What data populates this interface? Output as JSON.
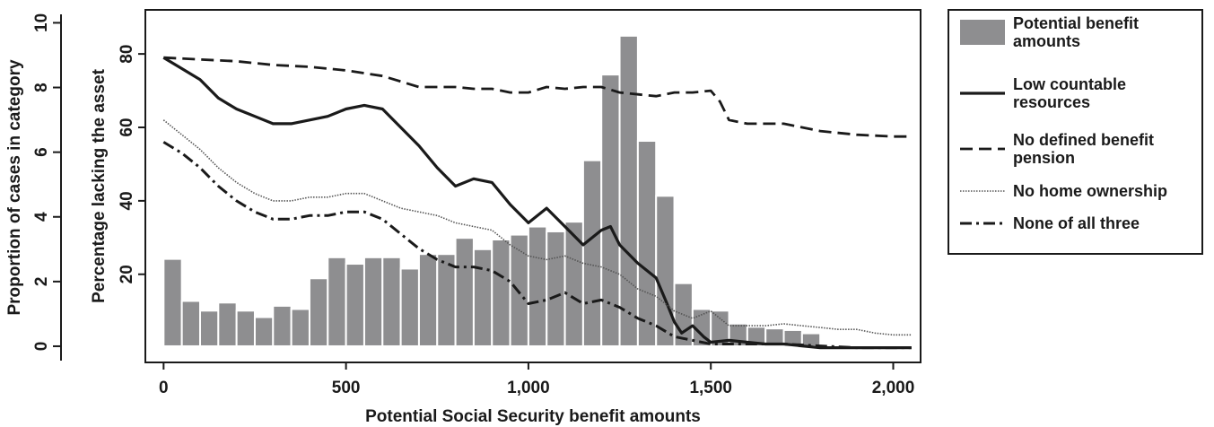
{
  "chart_data": {
    "type": "bar",
    "title": "",
    "xlabel": "Potential Social Security benefit amounts",
    "ylabel_left": "Proportion of cases in category",
    "ylabel_right": "Percentage lacking the asset",
    "xlim": [
      -50,
      2075
    ],
    "x_ticks": [
      0,
      500,
      1000,
      1500,
      2000
    ],
    "x_tick_labels": [
      "0",
      "500",
      "1,000",
      "1,500",
      "2,000"
    ],
    "ylim_left": [
      -0.5,
      10.4
    ],
    "y_ticks_left": [
      0,
      2,
      4,
      6,
      8,
      10
    ],
    "y_tick_labels_left": [
      "0",
      "2",
      "4",
      "6",
      "8",
      "10"
    ],
    "ylim_right": [
      -4,
      92
    ],
    "y_ticks_right": [
      20,
      40,
      60,
      80
    ],
    "y_tick_labels_right": [
      "20",
      "40",
      "60",
      "80"
    ],
    "bar_width": 50,
    "histogram": {
      "name": "Potential benefit amounts",
      "color": "#8e8e90",
      "x": [
        25,
        75,
        125,
        175,
        225,
        275,
        325,
        375,
        425,
        475,
        525,
        575,
        625,
        675,
        725,
        775,
        825,
        875,
        925,
        975,
        1025,
        1075,
        1125,
        1175,
        1225,
        1275,
        1325,
        1375,
        1425,
        1475,
        1525,
        1575,
        1625,
        1675,
        1725,
        1775,
        1825,
        1875,
        1925,
        1975
      ],
      "values": [
        2.7,
        1.4,
        1.1,
        1.35,
        1.1,
        0.9,
        1.25,
        1.15,
        2.1,
        2.75,
        2.55,
        2.75,
        2.75,
        2.4,
        2.85,
        2.85,
        3.35,
        3.0,
        3.3,
        3.45,
        3.7,
        3.55,
        3.85,
        5.75,
        8.4,
        9.6,
        6.35,
        4.65,
        1.95,
        1.15,
        1.1,
        0.7,
        0.6,
        0.55,
        0.5,
        0.4,
        0.0,
        0.0,
        0.0,
        0.0
      ]
    },
    "series": [
      {
        "name": "Low countable resources",
        "style": "solid",
        "x": [
          0,
          50,
          100,
          150,
          200,
          250,
          300,
          350,
          400,
          450,
          500,
          550,
          600,
          650,
          700,
          750,
          800,
          850,
          900,
          950,
          1000,
          1050,
          1100,
          1150,
          1200,
          1225,
          1250,
          1300,
          1350,
          1380,
          1400,
          1420,
          1450,
          1480,
          1500,
          1550,
          1600,
          1650,
          1700,
          1750,
          1800,
          1850,
          1900,
          1950,
          2000,
          2050
        ],
        "values": [
          79,
          76,
          73,
          68,
          65,
          63,
          61,
          61,
          62,
          63,
          65,
          66,
          65,
          60,
          55,
          49,
          44,
          46,
          45,
          39,
          34,
          38,
          33,
          28,
          32,
          33,
          28,
          23,
          19,
          12,
          7,
          4,
          6,
          3,
          1.5,
          2,
          1.5,
          1,
          1,
          0.5,
          0,
          0,
          0,
          0,
          0,
          0
        ]
      },
      {
        "name": "No defined benefit pension",
        "style": "dashed",
        "x": [
          0,
          100,
          200,
          300,
          400,
          500,
          600,
          650,
          700,
          750,
          800,
          850,
          900,
          950,
          1000,
          1050,
          1100,
          1150,
          1200,
          1250,
          1300,
          1350,
          1400,
          1450,
          1500,
          1525,
          1550,
          1600,
          1700,
          1800,
          1900,
          2000,
          2050
        ],
        "values": [
          79,
          78.5,
          78,
          77,
          76.5,
          75.5,
          74,
          72.5,
          71,
          71,
          71,
          70.5,
          70.5,
          69.5,
          69.5,
          71,
          70.5,
          71,
          71,
          69.5,
          69,
          68.5,
          69.5,
          69.5,
          70,
          67,
          62,
          61,
          61,
          59,
          58,
          57.5,
          57.5
        ]
      },
      {
        "name": "No home ownership",
        "style": "dotted",
        "x": [
          0,
          50,
          100,
          150,
          200,
          250,
          300,
          350,
          400,
          450,
          500,
          550,
          600,
          650,
          700,
          750,
          800,
          850,
          900,
          950,
          1000,
          1050,
          1100,
          1150,
          1200,
          1250,
          1300,
          1350,
          1400,
          1450,
          1500,
          1550,
          1600,
          1650,
          1700,
          1750,
          1800,
          1850,
          1900,
          1950,
          2000,
          2050
        ],
        "values": [
          62,
          58,
          54,
          49,
          45,
          42,
          40,
          40,
          41,
          41,
          42,
          42,
          40,
          38,
          37,
          36,
          34,
          33,
          32,
          28,
          25,
          24,
          25,
          23,
          22,
          20,
          16,
          14,
          10,
          8,
          10,
          6,
          6,
          6,
          6.5,
          6,
          5.5,
          5,
          5,
          4,
          3.5,
          3.5
        ]
      },
      {
        "name": "None of all three",
        "style": "dashdot",
        "x": [
          0,
          50,
          100,
          150,
          200,
          250,
          300,
          350,
          400,
          450,
          500,
          550,
          600,
          650,
          700,
          750,
          800,
          850,
          900,
          950,
          1000,
          1050,
          1100,
          1150,
          1200,
          1250,
          1300,
          1350,
          1400,
          1450,
          1500,
          1550,
          1600,
          1700,
          1800,
          1900,
          2000,
          2050
        ],
        "values": [
          56,
          53,
          49,
          44,
          40,
          37,
          35,
          35,
          36,
          36,
          37,
          37,
          35,
          31,
          27,
          24,
          22,
          22,
          21,
          18,
          12,
          13,
          15,
          12,
          13,
          11,
          8,
          6,
          3,
          2,
          1,
          1,
          1,
          1,
          0.5,
          0,
          0,
          0
        ]
      }
    ],
    "legend": {
      "placement": "right",
      "entries": [
        {
          "label_lines": [
            "Potential benefit",
            "amounts"
          ],
          "kind": "bar"
        },
        {
          "label_lines": [
            "Low countable",
            "resources"
          ],
          "kind": "solid"
        },
        {
          "label_lines": [
            "No defined benefit",
            "pension"
          ],
          "kind": "dashed"
        },
        {
          "label_lines": [
            "No home ownership"
          ],
          "kind": "dotted"
        },
        {
          "label_lines": [
            "None of all three"
          ],
          "kind": "dashdot"
        }
      ]
    },
    "grid": false
  }
}
